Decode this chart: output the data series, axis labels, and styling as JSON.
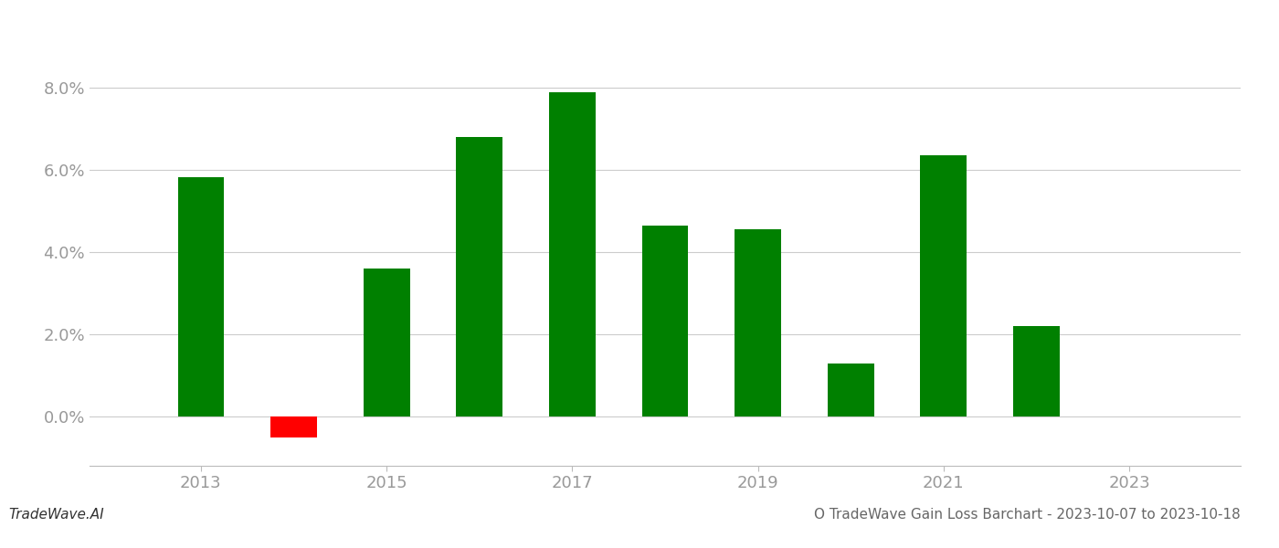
{
  "years": [
    2013,
    2014,
    2015,
    2016,
    2017,
    2018,
    2019,
    2020,
    2021,
    2022
  ],
  "values": [
    0.0582,
    -0.005,
    0.036,
    0.068,
    0.079,
    0.0465,
    0.0455,
    0.013,
    0.0635,
    0.022
  ],
  "colors": [
    "#008000",
    "#ff0000",
    "#008000",
    "#008000",
    "#008000",
    "#008000",
    "#008000",
    "#008000",
    "#008000",
    "#008000"
  ],
  "title": "O TradeWave Gain Loss Barchart - 2023-10-07 to 2023-10-18",
  "watermark": "TradeWave.AI",
  "ylim": [
    -0.012,
    0.092
  ],
  "yticks": [
    0.0,
    0.02,
    0.04,
    0.06,
    0.08
  ],
  "xticks": [
    2013,
    2015,
    2017,
    2019,
    2021,
    2023
  ],
  "background_color": "#ffffff",
  "grid_color": "#cccccc",
  "tick_color": "#999999",
  "bar_width": 0.5
}
